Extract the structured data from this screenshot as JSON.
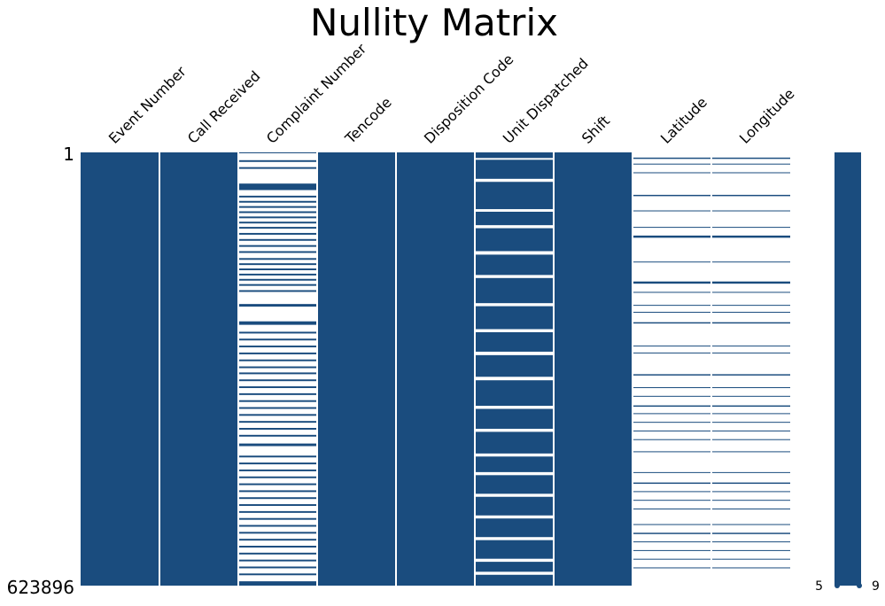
{
  "chart_data": {
    "type": "heatmap",
    "title": "Nullity Matrix",
    "color": "#1a4c7e",
    "columns": [
      "Event Number",
      "Call Received",
      "Complaint Number",
      "Tencode",
      "Disposition Code",
      "Unit Dispatched",
      "Shift",
      "Latitude",
      "Longitude"
    ],
    "row_range": [
      1,
      623896
    ],
    "row_labels": {
      "first": "1",
      "last": "623896"
    },
    "present_segments": [
      [
        [
          0.0,
          1.0
        ]
      ],
      [
        [
          0.0,
          1.0
        ]
      ],
      [
        [
          0.0,
          0.002
        ],
        [
          0.018,
          0.022
        ],
        [
          0.034,
          0.038
        ],
        [
          0.072,
          0.087
        ],
        [
          0.1,
          0.104
        ],
        [
          0.112,
          0.116
        ],
        [
          0.124,
          0.128
        ],
        [
          0.136,
          0.14
        ],
        [
          0.148,
          0.152
        ],
        [
          0.16,
          0.164
        ],
        [
          0.172,
          0.176
        ],
        [
          0.186,
          0.19
        ],
        [
          0.2,
          0.204
        ],
        [
          0.214,
          0.218
        ],
        [
          0.228,
          0.232
        ],
        [
          0.244,
          0.248
        ],
        [
          0.256,
          0.26
        ],
        [
          0.268,
          0.272
        ],
        [
          0.28,
          0.284
        ],
        [
          0.292,
          0.296
        ],
        [
          0.304,
          0.308
        ],
        [
          0.318,
          0.322
        ],
        [
          0.35,
          0.356
        ],
        [
          0.39,
          0.398
        ],
        [
          0.414,
          0.418
        ],
        [
          0.43,
          0.434
        ],
        [
          0.446,
          0.45
        ],
        [
          0.462,
          0.466
        ],
        [
          0.478,
          0.482
        ],
        [
          0.494,
          0.498
        ],
        [
          0.508,
          0.512
        ],
        [
          0.524,
          0.528
        ],
        [
          0.54,
          0.544
        ],
        [
          0.556,
          0.56
        ],
        [
          0.572,
          0.576
        ],
        [
          0.588,
          0.592
        ],
        [
          0.604,
          0.608
        ],
        [
          0.62,
          0.624
        ],
        [
          0.636,
          0.64
        ],
        [
          0.652,
          0.656
        ],
        [
          0.672,
          0.678
        ],
        [
          0.7,
          0.704
        ],
        [
          0.716,
          0.72
        ],
        [
          0.732,
          0.736
        ],
        [
          0.748,
          0.752
        ],
        [
          0.764,
          0.768
        ],
        [
          0.78,
          0.784
        ],
        [
          0.796,
          0.8
        ],
        [
          0.812,
          0.816
        ],
        [
          0.828,
          0.832
        ],
        [
          0.844,
          0.848
        ],
        [
          0.86,
          0.864
        ],
        [
          0.876,
          0.88
        ],
        [
          0.892,
          0.896
        ],
        [
          0.908,
          0.912
        ],
        [
          0.924,
          0.928
        ],
        [
          0.94,
          0.944
        ],
        [
          0.956,
          0.96
        ],
        [
          0.972,
          0.976
        ],
        [
          0.99,
          1.0
        ]
      ],
      [
        [
          0.0,
          1.0
        ]
      ],
      [
        [
          0.0,
          1.0
        ]
      ],
      [
        [
          0.0,
          0.013
        ],
        [
          0.017,
          0.061
        ],
        [
          0.068,
          0.131
        ],
        [
          0.137,
          0.168
        ],
        [
          0.175,
          0.228
        ],
        [
          0.236,
          0.283
        ],
        [
          0.29,
          0.348
        ],
        [
          0.355,
          0.408
        ],
        [
          0.415,
          0.46
        ],
        [
          0.468,
          0.518
        ],
        [
          0.526,
          0.585
        ],
        [
          0.592,
          0.638
        ],
        [
          0.645,
          0.695
        ],
        [
          0.702,
          0.738
        ],
        [
          0.745,
          0.788
        ],
        [
          0.795,
          0.838
        ],
        [
          0.845,
          0.888
        ],
        [
          0.895,
          0.938
        ],
        [
          0.945,
          0.968
        ],
        [
          0.975,
          1.0
        ]
      ],
      [
        [
          0.0,
          1.0
        ]
      ],
      [
        [
          0.012,
          0.015
        ],
        [
          0.026,
          0.028
        ],
        [
          0.046,
          0.048
        ],
        [
          0.098,
          0.101
        ],
        [
          0.134,
          0.136
        ],
        [
          0.172,
          0.174
        ],
        [
          0.192,
          0.197
        ],
        [
          0.252,
          0.254
        ],
        [
          0.298,
          0.303
        ],
        [
          0.322,
          0.324
        ],
        [
          0.352,
          0.354
        ],
        [
          0.368,
          0.37
        ],
        [
          0.392,
          0.395
        ],
        [
          0.446,
          0.448
        ],
        [
          0.462,
          0.464
        ],
        [
          0.512,
          0.515
        ],
        [
          0.542,
          0.544
        ],
        [
          0.562,
          0.564
        ],
        [
          0.584,
          0.587
        ],
        [
          0.602,
          0.604
        ],
        [
          0.622,
          0.624
        ],
        [
          0.642,
          0.644
        ],
        [
          0.662,
          0.664
        ],
        [
          0.69,
          0.692
        ],
        [
          0.738,
          0.74
        ],
        [
          0.762,
          0.765
        ],
        [
          0.782,
          0.784
        ],
        [
          0.802,
          0.804
        ],
        [
          0.822,
          0.824
        ],
        [
          0.858,
          0.86
        ],
        [
          0.878,
          0.881
        ],
        [
          0.898,
          0.9
        ],
        [
          0.918,
          0.92
        ],
        [
          0.938,
          0.94
        ],
        [
          0.958,
          0.96
        ]
      ],
      [
        [
          0.012,
          0.015
        ],
        [
          0.026,
          0.028
        ],
        [
          0.046,
          0.048
        ],
        [
          0.098,
          0.101
        ],
        [
          0.134,
          0.136
        ],
        [
          0.172,
          0.174
        ],
        [
          0.192,
          0.197
        ],
        [
          0.252,
          0.254
        ],
        [
          0.298,
          0.303
        ],
        [
          0.322,
          0.324
        ],
        [
          0.352,
          0.354
        ],
        [
          0.368,
          0.37
        ],
        [
          0.392,
          0.395
        ],
        [
          0.446,
          0.448
        ],
        [
          0.462,
          0.464
        ],
        [
          0.512,
          0.515
        ],
        [
          0.542,
          0.544
        ],
        [
          0.562,
          0.564
        ],
        [
          0.584,
          0.587
        ],
        [
          0.602,
          0.604
        ],
        [
          0.622,
          0.624
        ],
        [
          0.642,
          0.644
        ],
        [
          0.662,
          0.664
        ],
        [
          0.69,
          0.692
        ],
        [
          0.738,
          0.74
        ],
        [
          0.762,
          0.765
        ],
        [
          0.782,
          0.784
        ],
        [
          0.802,
          0.804
        ],
        [
          0.822,
          0.824
        ],
        [
          0.858,
          0.86
        ],
        [
          0.878,
          0.881
        ],
        [
          0.898,
          0.9
        ],
        [
          0.918,
          0.92
        ],
        [
          0.938,
          0.94
        ],
        [
          0.958,
          0.96
        ]
      ]
    ],
    "sparkline": {
      "min_label": "5",
      "max_label": "9",
      "min_value": 5,
      "max_value": 9
    }
  }
}
